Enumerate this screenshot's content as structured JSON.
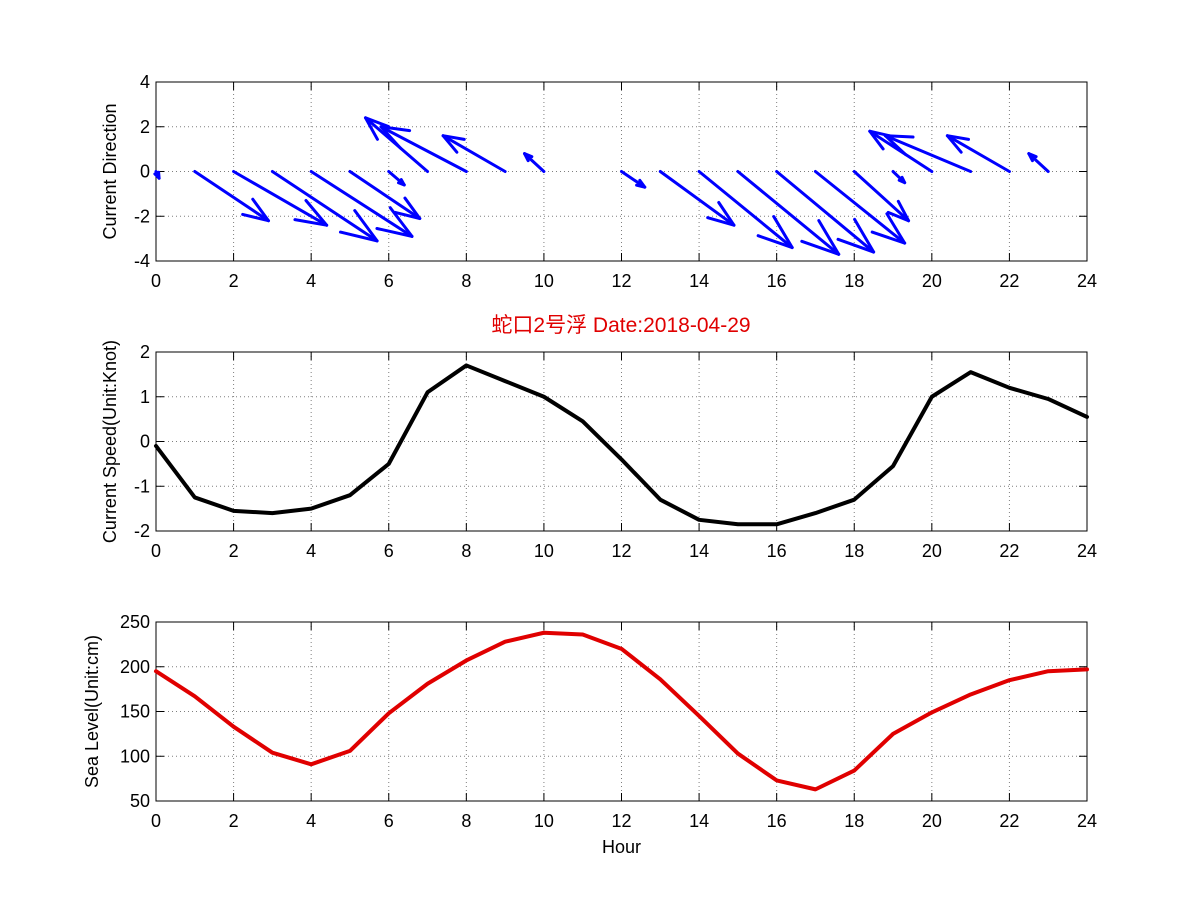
{
  "title": "蛇口2号浮   Date:2018-04-29",
  "colors": {
    "title": "#e00000",
    "direction": "#0000ff",
    "speed": "#000000",
    "sealevel": "#e00000",
    "grid": "#7f7f7f"
  },
  "chart_data": [
    {
      "type": "quiver",
      "ylabel": "Current Direction",
      "xlabel": "",
      "xlim": [
        0,
        24
      ],
      "ylim": [
        -4,
        4
      ],
      "xticks": [
        "0",
        "2",
        "4",
        "6",
        "8",
        "10",
        "12",
        "14",
        "16",
        "18",
        "20",
        "22",
        "24"
      ],
      "yticks": [
        "4",
        "2",
        "0",
        "-2",
        "-4"
      ],
      "grid": true,
      "x": [
        0,
        1,
        2,
        3,
        4,
        5,
        6,
        7,
        8,
        9,
        10,
        11,
        12,
        13,
        14,
        15,
        16,
        17,
        18,
        19,
        20,
        21,
        22,
        23,
        24
      ],
      "u": [
        0.08,
        1.9,
        2.4,
        2.7,
        2.6,
        1.8,
        0.4,
        -1.6,
        -2.2,
        -1.6,
        -0.5,
        0.0,
        0.6,
        1.9,
        2.4,
        2.6,
        2.5,
        2.3,
        1.4,
        0.3,
        -1.6,
        -2.2,
        -1.6,
        -0.5,
        0.0
      ],
      "v": [
        -0.3,
        -2.2,
        -2.4,
        -3.1,
        -2.9,
        -2.1,
        -0.6,
        2.4,
        2.0,
        1.6,
        0.8,
        0.0,
        -0.7,
        -2.4,
        -3.4,
        -3.7,
        -3.6,
        -3.2,
        -2.2,
        -0.5,
        1.8,
        1.6,
        1.6,
        0.8,
        0.0
      ]
    },
    {
      "type": "line",
      "ylabel": "Current Speed(Unit:Knot)",
      "xlabel": "",
      "xlim": [
        0,
        24
      ],
      "ylim": [
        -2,
        2
      ],
      "xticks": [
        "0",
        "2",
        "4",
        "6",
        "8",
        "10",
        "12",
        "14",
        "16",
        "18",
        "20",
        "22",
        "24"
      ],
      "yticks": [
        "2",
        "1",
        "0",
        "-1",
        "-2"
      ],
      "grid": true,
      "x": [
        0,
        1,
        2,
        3,
        4,
        5,
        6,
        7,
        8,
        9,
        10,
        11,
        12,
        13,
        14,
        15,
        16,
        17,
        18,
        19,
        20,
        21,
        22,
        23,
        24
      ],
      "values": [
        -0.1,
        -1.25,
        -1.55,
        -1.6,
        -1.5,
        -1.2,
        -0.5,
        1.1,
        1.7,
        1.35,
        1.0,
        0.45,
        -0.4,
        -1.3,
        -1.75,
        -1.85,
        -1.85,
        -1.6,
        -1.3,
        -0.55,
        1.0,
        1.55,
        1.2,
        0.95,
        0.55
      ]
    },
    {
      "type": "line",
      "ylabel": "Sea Level(Unit:cm)",
      "xlabel": "Hour",
      "xlim": [
        0,
        24
      ],
      "ylim": [
        50,
        250
      ],
      "xticks": [
        "0",
        "2",
        "4",
        "6",
        "8",
        "10",
        "12",
        "14",
        "16",
        "18",
        "20",
        "22",
        "24"
      ],
      "yticks": [
        "250",
        "200",
        "150",
        "100",
        "50"
      ],
      "grid": true,
      "x": [
        0,
        1,
        2,
        3,
        4,
        5,
        6,
        7,
        8,
        9,
        10,
        11,
        12,
        13,
        14,
        15,
        16,
        17,
        18,
        19,
        20,
        21,
        22,
        23,
        24
      ],
      "values": [
        195,
        167,
        133,
        104,
        91,
        106,
        148,
        181,
        207,
        228,
        238,
        236,
        220,
        186,
        145,
        103,
        73,
        63,
        84,
        125,
        149,
        169,
        185,
        195,
        197
      ]
    }
  ]
}
